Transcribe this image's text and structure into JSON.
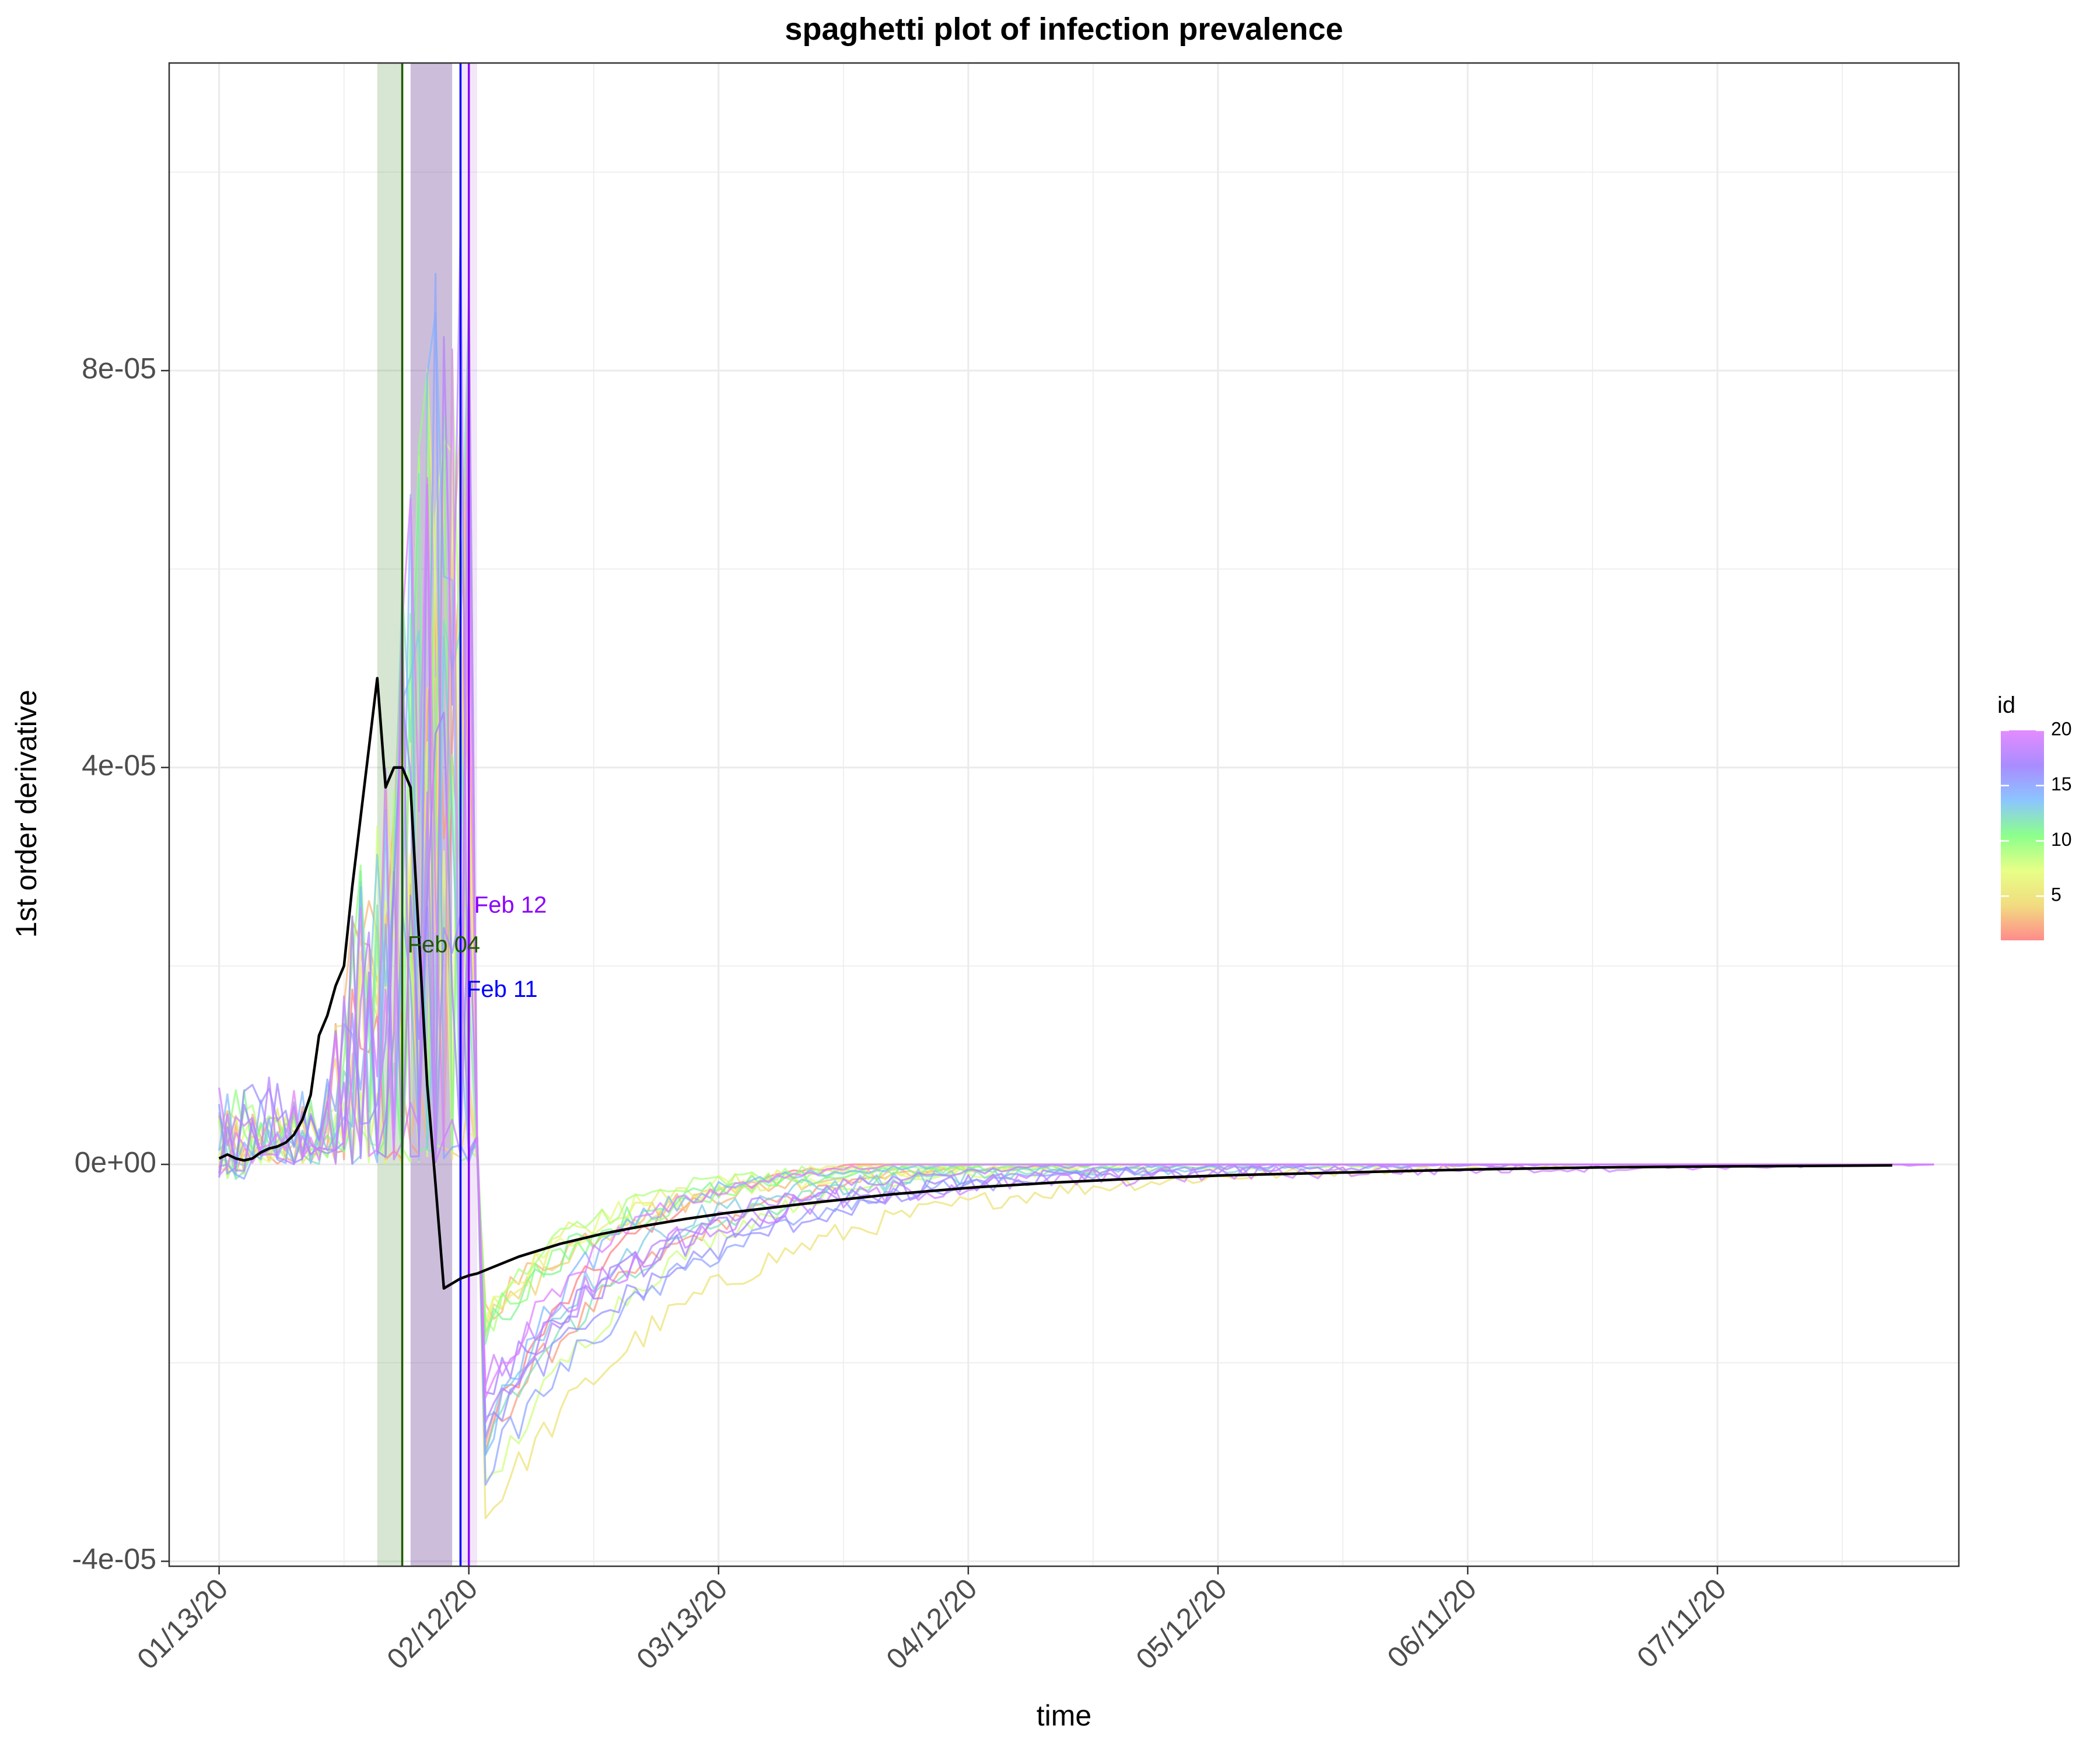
{
  "chart_data": {
    "type": "line",
    "title": "spaghetti plot of infection prevalence",
    "xlabel": "time",
    "ylabel": "1st order derivative",
    "x_type": "date",
    "x_range": [
      "2020-01-07",
      "2020-08-09"
    ],
    "ylim": [
      -4.05e-05,
      0.000111
    ],
    "x_ticks": [
      {
        "date": "2020-01-13",
        "label": "01/13/20"
      },
      {
        "date": "2020-02-12",
        "label": "02/12/20"
      },
      {
        "date": "2020-03-13",
        "label": "03/13/20"
      },
      {
        "date": "2020-04-12",
        "label": "04/12/20"
      },
      {
        "date": "2020-05-12",
        "label": "05/12/20"
      },
      {
        "date": "2020-06-11",
        "label": "06/11/20"
      },
      {
        "date": "2020-07-11",
        "label": "07/11/20"
      }
    ],
    "y_ticks": [
      {
        "value": -4e-05,
        "label": "-4e-05"
      },
      {
        "value": 0,
        "label": "0e+00"
      },
      {
        "value": 4e-05,
        "label": "4e-05"
      },
      {
        "value": 8e-05,
        "label": "8e-05"
      }
    ],
    "grid": true,
    "legend": {
      "title": "id",
      "position": "right",
      "type": "colorbar",
      "range": [
        1,
        20
      ],
      "ticks": [
        5,
        10,
        15,
        20
      ],
      "colors": [
        "#FF7F7F",
        "#F0D872",
        "#E4FF7A",
        "#7FFF7F",
        "#7FBFFF",
        "#A07FFF",
        "#E07FFF"
      ]
    },
    "shaded_regions": [
      {
        "from": "2020-02-01",
        "to": "2020-02-04",
        "color": "#5A9A4A",
        "opacity": 0.25
      },
      {
        "from": "2020-02-05",
        "to": "2020-02-10",
        "color": "#7A55A0",
        "opacity": 0.38
      },
      {
        "from": "2020-02-11",
        "to": "2020-02-13",
        "color": "#C8A0E8",
        "opacity": 0.25
      }
    ],
    "vertical_lines": [
      {
        "date": "2020-02-04",
        "color": "#1E5A00"
      },
      {
        "date": "2020-02-11",
        "color": "#0000FF"
      },
      {
        "date": "2020-02-12",
        "color": "#8B00FF"
      }
    ],
    "annotations": [
      {
        "text": "Feb 04",
        "date": "2020-02-09",
        "y": 2.2e-05,
        "color": "#1E5A00"
      },
      {
        "text": "Feb 11",
        "date": "2020-02-16",
        "y": 1.75e-05,
        "color": "#0000FF"
      },
      {
        "text": "Feb 12",
        "date": "2020-02-17",
        "y": 2.6e-05,
        "color": "#8B00FF"
      }
    ],
    "mean_series": {
      "color": "#000000",
      "x": [
        "2020-01-13",
        "2020-01-14",
        "2020-01-15",
        "2020-01-16",
        "2020-01-17",
        "2020-01-18",
        "2020-01-19",
        "2020-01-20",
        "2020-01-21",
        "2020-01-22",
        "2020-01-23",
        "2020-01-24",
        "2020-01-25",
        "2020-01-26",
        "2020-01-27",
        "2020-01-28",
        "2020-01-29",
        "2020-01-30",
        "2020-01-31",
        "2020-02-01",
        "2020-02-02",
        "2020-02-03",
        "2020-02-04",
        "2020-02-05",
        "2020-02-06",
        "2020-02-07",
        "2020-02-08",
        "2020-02-09",
        "2020-02-10",
        "2020-02-11",
        "2020-02-12",
        "2020-02-13",
        "2020-02-18",
        "2020-02-23",
        "2020-02-28",
        "2020-03-04",
        "2020-03-09",
        "2020-03-14",
        "2020-03-24",
        "2020-04-03",
        "2020-04-13",
        "2020-04-23",
        "2020-05-03",
        "2020-05-13",
        "2020-05-28",
        "2020-06-12",
        "2020-06-27",
        "2020-07-12",
        "2020-08-01"
      ],
      "y": [
        6e-07,
        1e-06,
        6e-07,
        4e-07,
        6e-07,
        1.2e-06,
        1.6e-06,
        1.8e-06,
        2.2e-06,
        3e-06,
        4.5e-06,
        7e-06,
        1.3e-05,
        1.5e-05,
        1.8e-05,
        2e-05,
        2.8e-05,
        3.5e-05,
        4.2e-05,
        4.9e-05,
        3.8e-05,
        4e-05,
        4e-05,
        3.8e-05,
        2.3e-05,
        8e-06,
        -2e-06,
        -1.25e-05,
        -1.2e-05,
        -1.15e-05,
        -1.12e-05,
        -1.1e-05,
        -9.3e-06,
        -8e-06,
        -7e-06,
        -6.2e-06,
        -5.5e-06,
        -4.9e-06,
        -3.9e-06,
        -3e-06,
        -2.3e-06,
        -1.8e-06,
        -1.4e-06,
        -1.1e-06,
        -8e-07,
        -5e-07,
        -3e-07,
        -2e-07,
        -1e-07
      ]
    },
    "series_note_ids": [
      1,
      20
    ]
  }
}
